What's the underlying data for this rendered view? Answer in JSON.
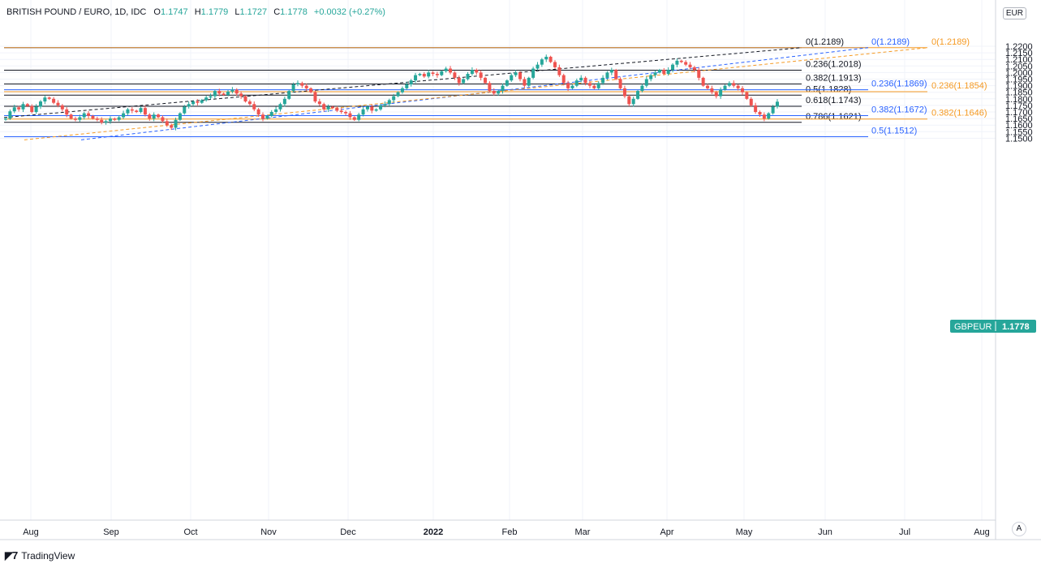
{
  "header": {
    "title": "BRITISH POUND / EURO, 1D, IDC",
    "open_label": "O",
    "open": "1.1747",
    "high_label": "H",
    "high": "1.1779",
    "low_label": "L",
    "low": "1.1727",
    "close_label": "C",
    "close": "1.1778",
    "change": "+0.0032 (+0.27%)"
  },
  "currency_badge": "EUR",
  "footer": {
    "brand": "TradingView"
  },
  "auto_scale_label": "A",
  "colors": {
    "up": "#26a69a",
    "down": "#ef5350",
    "black_fib": "#131722",
    "blue_fib": "#2962ff",
    "orange_fib": "#f59a23"
  },
  "chart_data": {
    "type": "candlestick",
    "symbol": "GBPEUR",
    "last_price": "1.1778",
    "ylim": [
      1.148,
      1.2225
    ],
    "y_ticks": [
      "1.2200",
      "1.2150",
      "1.2100",
      "1.2050",
      "1.2000",
      "1.1950",
      "1.1900",
      "1.1850",
      "1.1800",
      "1.1750",
      "1.1700",
      "1.1650",
      "1.1600",
      "1.1550",
      "1.1500"
    ],
    "x_ticks": [
      "Aug",
      "Sep",
      "Oct",
      "Nov",
      "Dec",
      "2022",
      "Feb",
      "Mar",
      "Apr",
      "May",
      "Jun",
      "Jul",
      "Aug"
    ],
    "fib_levels_black": [
      {
        "label": "0(1.2189)",
        "value": 1.2189
      },
      {
        "label": "0.236(1.2018)",
        "value": 1.2018
      },
      {
        "label": "0.382(1.1913)",
        "value": 1.1913
      },
      {
        "label": "0.5(1.1828)",
        "value": 1.1828
      },
      {
        "label": "0.618(1.1743)",
        "value": 1.1743
      },
      {
        "label": "0.786(1.1621)",
        "value": 1.1621
      }
    ],
    "fib_levels_blue": [
      {
        "label": "0(1.2189)",
        "value": 1.2189
      },
      {
        "label": "0.236(1.1869)",
        "value": 1.1869
      },
      {
        "label": "0.382(1.1672)",
        "value": 1.1672
      },
      {
        "label": "0.5(1.1512)",
        "value": 1.1512
      }
    ],
    "fib_levels_orange": [
      {
        "label": "0(1.2189)",
        "value": 1.2189
      },
      {
        "label": "0.236(1.1854)",
        "value": 1.1854
      },
      {
        "label": "0.382(1.1646)",
        "value": 1.1646
      }
    ],
    "close_path": [
      1.165,
      1.1705,
      1.1735,
      1.172,
      1.176,
      1.1745,
      1.17,
      1.174,
      1.178,
      1.181,
      1.18,
      1.177,
      1.175,
      1.172,
      1.168,
      1.165,
      1.164,
      1.166,
      1.169,
      1.167,
      1.165,
      1.164,
      1.162,
      1.163,
      1.165,
      1.164,
      1.166,
      1.169,
      1.172,
      1.171,
      1.17,
      1.173,
      1.168,
      1.165,
      1.168,
      1.166,
      1.163,
      1.16,
      1.158,
      1.164,
      1.169,
      1.174,
      1.176,
      1.178,
      1.177,
      1.179,
      1.181,
      1.182,
      1.186,
      1.184,
      1.183,
      1.1855,
      1.187,
      1.184,
      1.182,
      1.178,
      1.176,
      1.172,
      1.168,
      1.165,
      1.167,
      1.17,
      1.172,
      1.176,
      1.18,
      1.186,
      1.191,
      1.192,
      1.19,
      1.188,
      1.185,
      1.178,
      1.176,
      1.172,
      1.174,
      1.173,
      1.171,
      1.17,
      1.169,
      1.166,
      1.164,
      1.168,
      1.172,
      1.174,
      1.171,
      1.172,
      1.175,
      1.176,
      1.179,
      1.182,
      1.185,
      1.188,
      1.191,
      1.194,
      1.198,
      1.199,
      1.197,
      1.2,
      1.199,
      1.198,
      1.201,
      1.203,
      1.2,
      1.196,
      1.192,
      1.195,
      1.199,
      1.202,
      1.2,
      1.196,
      1.192,
      1.186,
      1.184,
      1.186,
      1.19,
      1.194,
      1.198,
      1.2,
      1.195,
      1.19,
      1.196,
      1.203,
      1.206,
      1.21,
      1.212,
      1.208,
      1.204,
      1.198,
      1.192,
      1.188,
      1.19,
      1.194,
      1.196,
      1.192,
      1.19,
      1.188,
      1.192,
      1.196,
      1.2,
      1.202,
      1.195,
      1.188,
      1.182,
      1.176,
      1.18,
      1.186,
      1.19,
      1.195,
      1.198,
      1.2,
      1.202,
      1.199,
      1.202,
      1.206,
      1.209,
      1.208,
      1.206,
      1.204,
      1.202,
      1.196,
      1.19,
      1.188,
      1.185,
      1.182,
      1.187,
      1.19,
      1.192,
      1.19,
      1.188,
      1.185,
      1.18,
      1.175,
      1.17,
      1.168,
      1.165,
      1.169,
      1.174,
      1.1778
    ]
  }
}
